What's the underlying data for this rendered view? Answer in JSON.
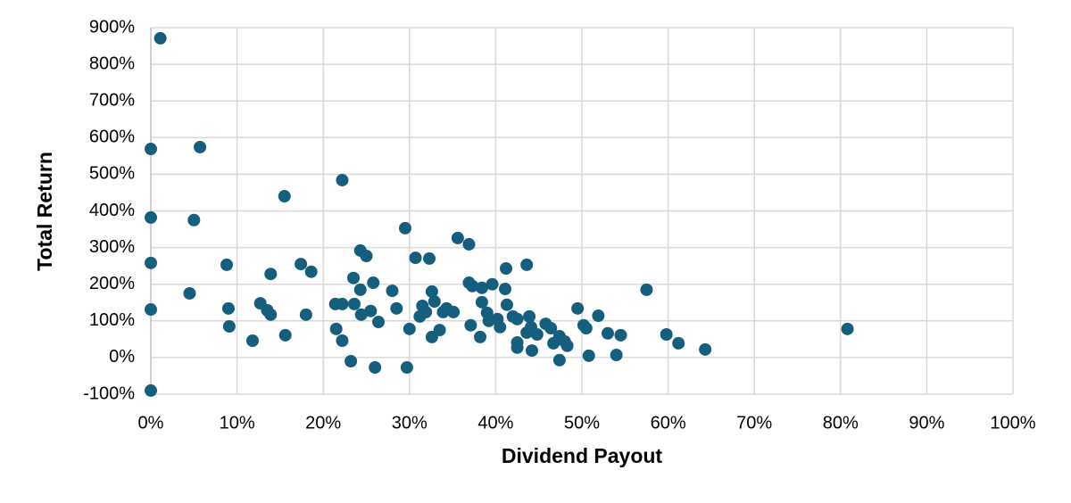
{
  "chart_data": {
    "type": "scatter",
    "x_label": "Dividend Payout",
    "y_label": "Total Return",
    "color": "#165e7e",
    "grid": true,
    "xlim": [
      0,
      100
    ],
    "xticks": [
      {
        "value": 0,
        "label": "0%"
      },
      {
        "value": 10,
        "label": "10%"
      },
      {
        "value": 20,
        "label": "20%"
      },
      {
        "value": 30,
        "label": "30%"
      },
      {
        "value": 40,
        "label": "40%"
      },
      {
        "value": 50,
        "label": "50%"
      },
      {
        "value": 60,
        "label": "60%"
      },
      {
        "value": 70,
        "label": "70%"
      },
      {
        "value": 80,
        "label": "80%"
      },
      {
        "value": 90,
        "label": "90%"
      },
      {
        "value": 100,
        "label": "100%"
      }
    ],
    "ylim": [
      -100,
      900
    ],
    "yticks": [
      {
        "value": -100,
        "label": "-100%"
      },
      {
        "value": 0,
        "label": "0%"
      },
      {
        "value": 100,
        "label": "100%"
      },
      {
        "value": 200,
        "label": "200%"
      },
      {
        "value": 300,
        "label": "300%"
      },
      {
        "value": 400,
        "label": "400%"
      },
      {
        "value": 500,
        "label": "500%"
      },
      {
        "value": 600,
        "label": "600%"
      },
      {
        "value": 700,
        "label": "700%"
      },
      {
        "value": 800,
        "label": "800%"
      },
      {
        "value": 900,
        "label": "900%"
      }
    ],
    "x": [
      1.1,
      0,
      5.7,
      0,
      5.0,
      15.5,
      22.2,
      0,
      8.8,
      17.4,
      18.6,
      13.9,
      0,
      4.5,
      9.0,
      9.1,
      12.7,
      13.5,
      13.9,
      11.8,
      15.6,
      18.0,
      0,
      21.4,
      22.2,
      23.5,
      23.6,
      24.3,
      24.3,
      25.0,
      24.4,
      25.8,
      25.5,
      26.4,
      21.5,
      22.2,
      23.2,
      26.0,
      28.0,
      28.5,
      29.5,
      30.7,
      32.3,
      30.0,
      29.7,
      31.2,
      31.5,
      31.9,
      32.6,
      32.9,
      32.6,
      33.5,
      33.9,
      34.3,
      35.1,
      35.6,
      36.9,
      36.9,
      37.3,
      37.1,
      38.4,
      38.4,
      38.2,
      39.0,
      39.6,
      39.2,
      40.2,
      40.5,
      41.2,
      41.1,
      41.3,
      42.0,
      42.5,
      42.5,
      42.5,
      43.6,
      43.9,
      43.6,
      44.1,
      44.2,
      44.8,
      45.8,
      46.4,
      46.7,
      47.4,
      47.4,
      48.0,
      48.3,
      49.5,
      50.2,
      50.5,
      50.8,
      51.9,
      53.0,
      54.5,
      54.0,
      57.5,
      59.8,
      61.2,
      64.3,
      80.8
    ],
    "values": [
      871,
      569,
      574,
      382,
      375,
      440,
      484,
      258,
      253,
      255,
      234,
      228,
      131,
      175,
      134,
      85,
      148,
      129,
      117,
      46,
      61,
      117,
      -90,
      146,
      146,
      217,
      146,
      185,
      292,
      277,
      117,
      204,
      127,
      97,
      78,
      46,
      -10,
      -27,
      182,
      134,
      353,
      272,
      270,
      78,
      -27,
      112,
      141,
      124,
      180,
      153,
      56,
      75,
      124,
      134,
      124,
      326,
      309,
      204,
      195,
      88,
      190,
      151,
      56,
      122,
      200,
      100,
      105,
      83,
      243,
      187,
      144,
      112,
      105,
      41,
      27,
      253,
      112,
      68,
      83,
      19,
      63,
      92,
      80,
      39,
      58,
      -7,
      44,
      32,
      134,
      88,
      80,
      5,
      114,
      66,
      61,
      7,
      185,
      63,
      39,
      22,
      78
    ]
  }
}
